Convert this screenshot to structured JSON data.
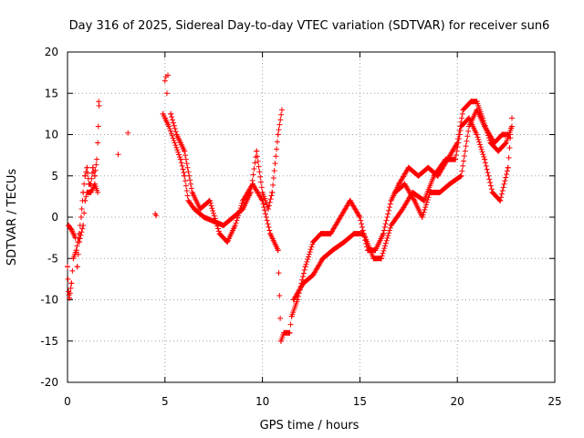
{
  "chart_data": {
    "type": "scatter",
    "title": "Day 316 of 2025, Sidereal Day-to-day VTEC variation (SDTVAR) for receiver sun6",
    "xlabel": "GPS time / hours",
    "ylabel": "SDTVAR / TECUs",
    "xlim": [
      0,
      25
    ],
    "ylim": [
      -20,
      20
    ],
    "xticks": [
      "0",
      "5",
      "10",
      "15",
      "20",
      "25"
    ],
    "yticks": [
      "-20",
      "-15",
      "-10",
      "-5",
      "0",
      "5",
      "10",
      "15",
      "20"
    ],
    "grid": true,
    "marker": "+",
    "color": "#ff0000",
    "series": [
      {
        "name": "SDTVAR",
        "trace": [
          [
            0.0,
            -6
          ],
          [
            0.05,
            -9
          ],
          [
            0.1,
            -9.8
          ],
          [
            0.2,
            -8
          ],
          [
            0.3,
            -5
          ],
          [
            0.45,
            -4
          ],
          [
            0.6,
            -2
          ],
          [
            0.7,
            0
          ],
          [
            0.8,
            3
          ],
          [
            0.9,
            5
          ],
          [
            1.0,
            6
          ],
          [
            1.1,
            4
          ],
          [
            1.2,
            4
          ],
          [
            1.3,
            6
          ],
          [
            1.4,
            5
          ],
          [
            1.5,
            7
          ],
          [
            0.05,
            -1
          ],
          [
            0.2,
            -1.5
          ],
          [
            0.4,
            -2.5
          ],
          [
            0.5,
            -6
          ],
          [
            0.6,
            -3
          ],
          [
            0.8,
            -1
          ],
          [
            0.9,
            2
          ],
          [
            1.0,
            3
          ],
          [
            1.2,
            3
          ],
          [
            1.4,
            4
          ],
          [
            1.55,
            3
          ],
          [
            4.9,
            12.5
          ],
          [
            5.0,
            12
          ],
          [
            5.2,
            11
          ],
          [
            5.5,
            9
          ],
          [
            5.8,
            7
          ],
          [
            6.0,
            5
          ],
          [
            6.2,
            2
          ],
          [
            6.5,
            1
          ],
          [
            7.0,
            0
          ],
          [
            7.5,
            -0.5
          ],
          [
            8.0,
            -1
          ],
          [
            8.5,
            0
          ],
          [
            9.0,
            1
          ],
          [
            9.4,
            3
          ],
          [
            9.7,
            8
          ],
          [
            10.0,
            3
          ],
          [
            10.3,
            1
          ],
          [
            10.5,
            3
          ],
          [
            10.8,
            10
          ],
          [
            11.0,
            13
          ],
          [
            5.3,
            12.5
          ],
          [
            5.6,
            10
          ],
          [
            6.0,
            8
          ],
          [
            6.4,
            3
          ],
          [
            6.8,
            1
          ],
          [
            7.3,
            2
          ],
          [
            7.8,
            -2
          ],
          [
            8.2,
            -3
          ],
          [
            8.6,
            -1
          ],
          [
            9.0,
            2
          ],
          [
            9.5,
            4
          ],
          [
            10.0,
            2
          ],
          [
            10.4,
            -2
          ],
          [
            10.8,
            -4
          ],
          [
            10.95,
            -15
          ],
          [
            11.1,
            -14
          ],
          [
            11.4,
            -14
          ],
          [
            11.5,
            -12
          ],
          [
            11.8,
            -10
          ],
          [
            12.2,
            -6
          ],
          [
            12.6,
            -3
          ],
          [
            13.0,
            -2
          ],
          [
            13.5,
            -2
          ],
          [
            14.0,
            0
          ],
          [
            14.5,
            2
          ],
          [
            15.0,
            0
          ],
          [
            15.4,
            -4
          ],
          [
            15.8,
            -4
          ],
          [
            16.2,
            -2
          ],
          [
            16.6,
            2
          ],
          [
            17.0,
            4
          ],
          [
            17.5,
            6
          ],
          [
            18.0,
            5
          ],
          [
            18.5,
            6
          ],
          [
            19.0,
            5
          ],
          [
            19.5,
            7
          ],
          [
            20.0,
            9
          ],
          [
            20.3,
            13
          ],
          [
            20.7,
            14
          ],
          [
            21.0,
            14
          ],
          [
            21.3,
            12
          ],
          [
            21.7,
            9
          ],
          [
            22.1,
            8
          ],
          [
            22.5,
            9
          ],
          [
            22.8,
            11
          ],
          [
            11.6,
            -10
          ],
          [
            12.1,
            -8
          ],
          [
            12.6,
            -7
          ],
          [
            13.1,
            -5
          ],
          [
            13.6,
            -4
          ],
          [
            14.2,
            -3
          ],
          [
            14.7,
            -2
          ],
          [
            15.2,
            -2
          ],
          [
            15.7,
            -5
          ],
          [
            16.1,
            -5
          ],
          [
            16.6,
            -1
          ],
          [
            17.2,
            1
          ],
          [
            17.7,
            3
          ],
          [
            18.3,
            2
          ],
          [
            18.8,
            5
          ],
          [
            19.4,
            7
          ],
          [
            19.9,
            7
          ],
          [
            20.2,
            11
          ],
          [
            20.6,
            12
          ],
          [
            21.0,
            10
          ],
          [
            21.4,
            7
          ],
          [
            21.8,
            3
          ],
          [
            22.2,
            2
          ],
          [
            22.6,
            6
          ],
          [
            22.8,
            12
          ],
          [
            16.8,
            3
          ],
          [
            17.3,
            4
          ],
          [
            17.8,
            2
          ],
          [
            18.2,
            0
          ],
          [
            18.6,
            3
          ],
          [
            19.1,
            3
          ],
          [
            19.6,
            4
          ],
          [
            20.2,
            5
          ],
          [
            20.6,
            11
          ],
          [
            21.0,
            13
          ],
          [
            21.4,
            11
          ],
          [
            21.9,
            9
          ],
          [
            22.3,
            10
          ],
          [
            22.7,
            10
          ]
        ],
        "isolated": [
          [
            1.55,
            9
          ],
          [
            1.58,
            11
          ],
          [
            1.62,
            13.5
          ],
          [
            1.6,
            14
          ],
          [
            2.6,
            7.6
          ],
          [
            3.1,
            10.2
          ],
          [
            4.5,
            0.4
          ],
          [
            4.55,
            0.2
          ],
          [
            5.0,
            16.5
          ],
          [
            5.05,
            17
          ],
          [
            5.1,
            15
          ],
          [
            5.15,
            17.2
          ]
        ]
      }
    ]
  }
}
